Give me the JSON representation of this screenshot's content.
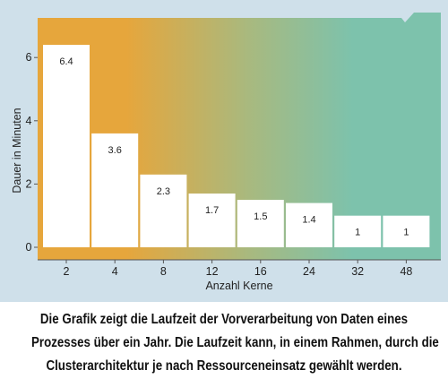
{
  "chart_data": {
    "type": "bar",
    "categories": [
      "2",
      "4",
      "8",
      "12",
      "16",
      "24",
      "32",
      "48"
    ],
    "values": [
      6.4,
      3.6,
      2.3,
      1.7,
      1.5,
      1.4,
      1,
      1
    ],
    "value_labels": [
      "6.4",
      "3.6",
      "2.3",
      "1.7",
      "1.5",
      "1.4",
      "1",
      "1"
    ],
    "y_ticks": [
      "0",
      "2",
      "4",
      "6"
    ],
    "xlabel": "Anzahl Kerne",
    "ylabel": "Dauer in Minuten",
    "ylim": [
      0,
      7.3
    ],
    "grid": false,
    "colors": {
      "gradient_start": "#e6a63c",
      "gradient_end": "#7dc2ac",
      "bar": "#ffffff",
      "panel": "#cfe0ea"
    }
  },
  "caption": {
    "lines": [
      "Die Grafik zeigt die Laufzeit der Vorverarbeitung von Daten eines",
      "Prozesses über ein Jahr. Die Laufzeit kann, in einem Rahmen, durch die",
      "Clusterarchitektur je nach Ressourceneinsatz gewählt werden."
    ]
  }
}
